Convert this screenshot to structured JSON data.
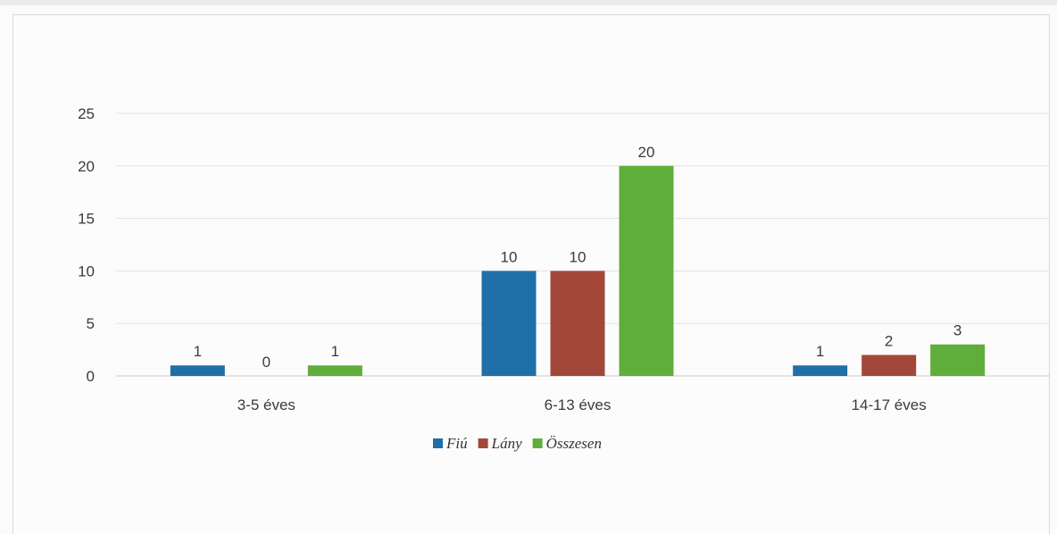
{
  "chart_data": {
    "type": "bar",
    "categories": [
      "3-5 éves",
      "6-13 éves",
      "14-17 éves"
    ],
    "series": [
      {
        "name": "Fiú",
        "values": [
          1,
          10,
          1
        ],
        "color": "#1f6fa8"
      },
      {
        "name": "Lány",
        "values": [
          0,
          10,
          2
        ],
        "color": "#a3473b"
      },
      {
        "name": "Összesen",
        "values": [
          1,
          20,
          3
        ],
        "color": "#5fae3b"
      }
    ],
    "ylim": [
      0,
      25
    ],
    "yticks": [
      0,
      5,
      10,
      15,
      20,
      25
    ],
    "grid": true,
    "legend": "bottom",
    "title": "",
    "xlabel": "",
    "ylabel": ""
  }
}
